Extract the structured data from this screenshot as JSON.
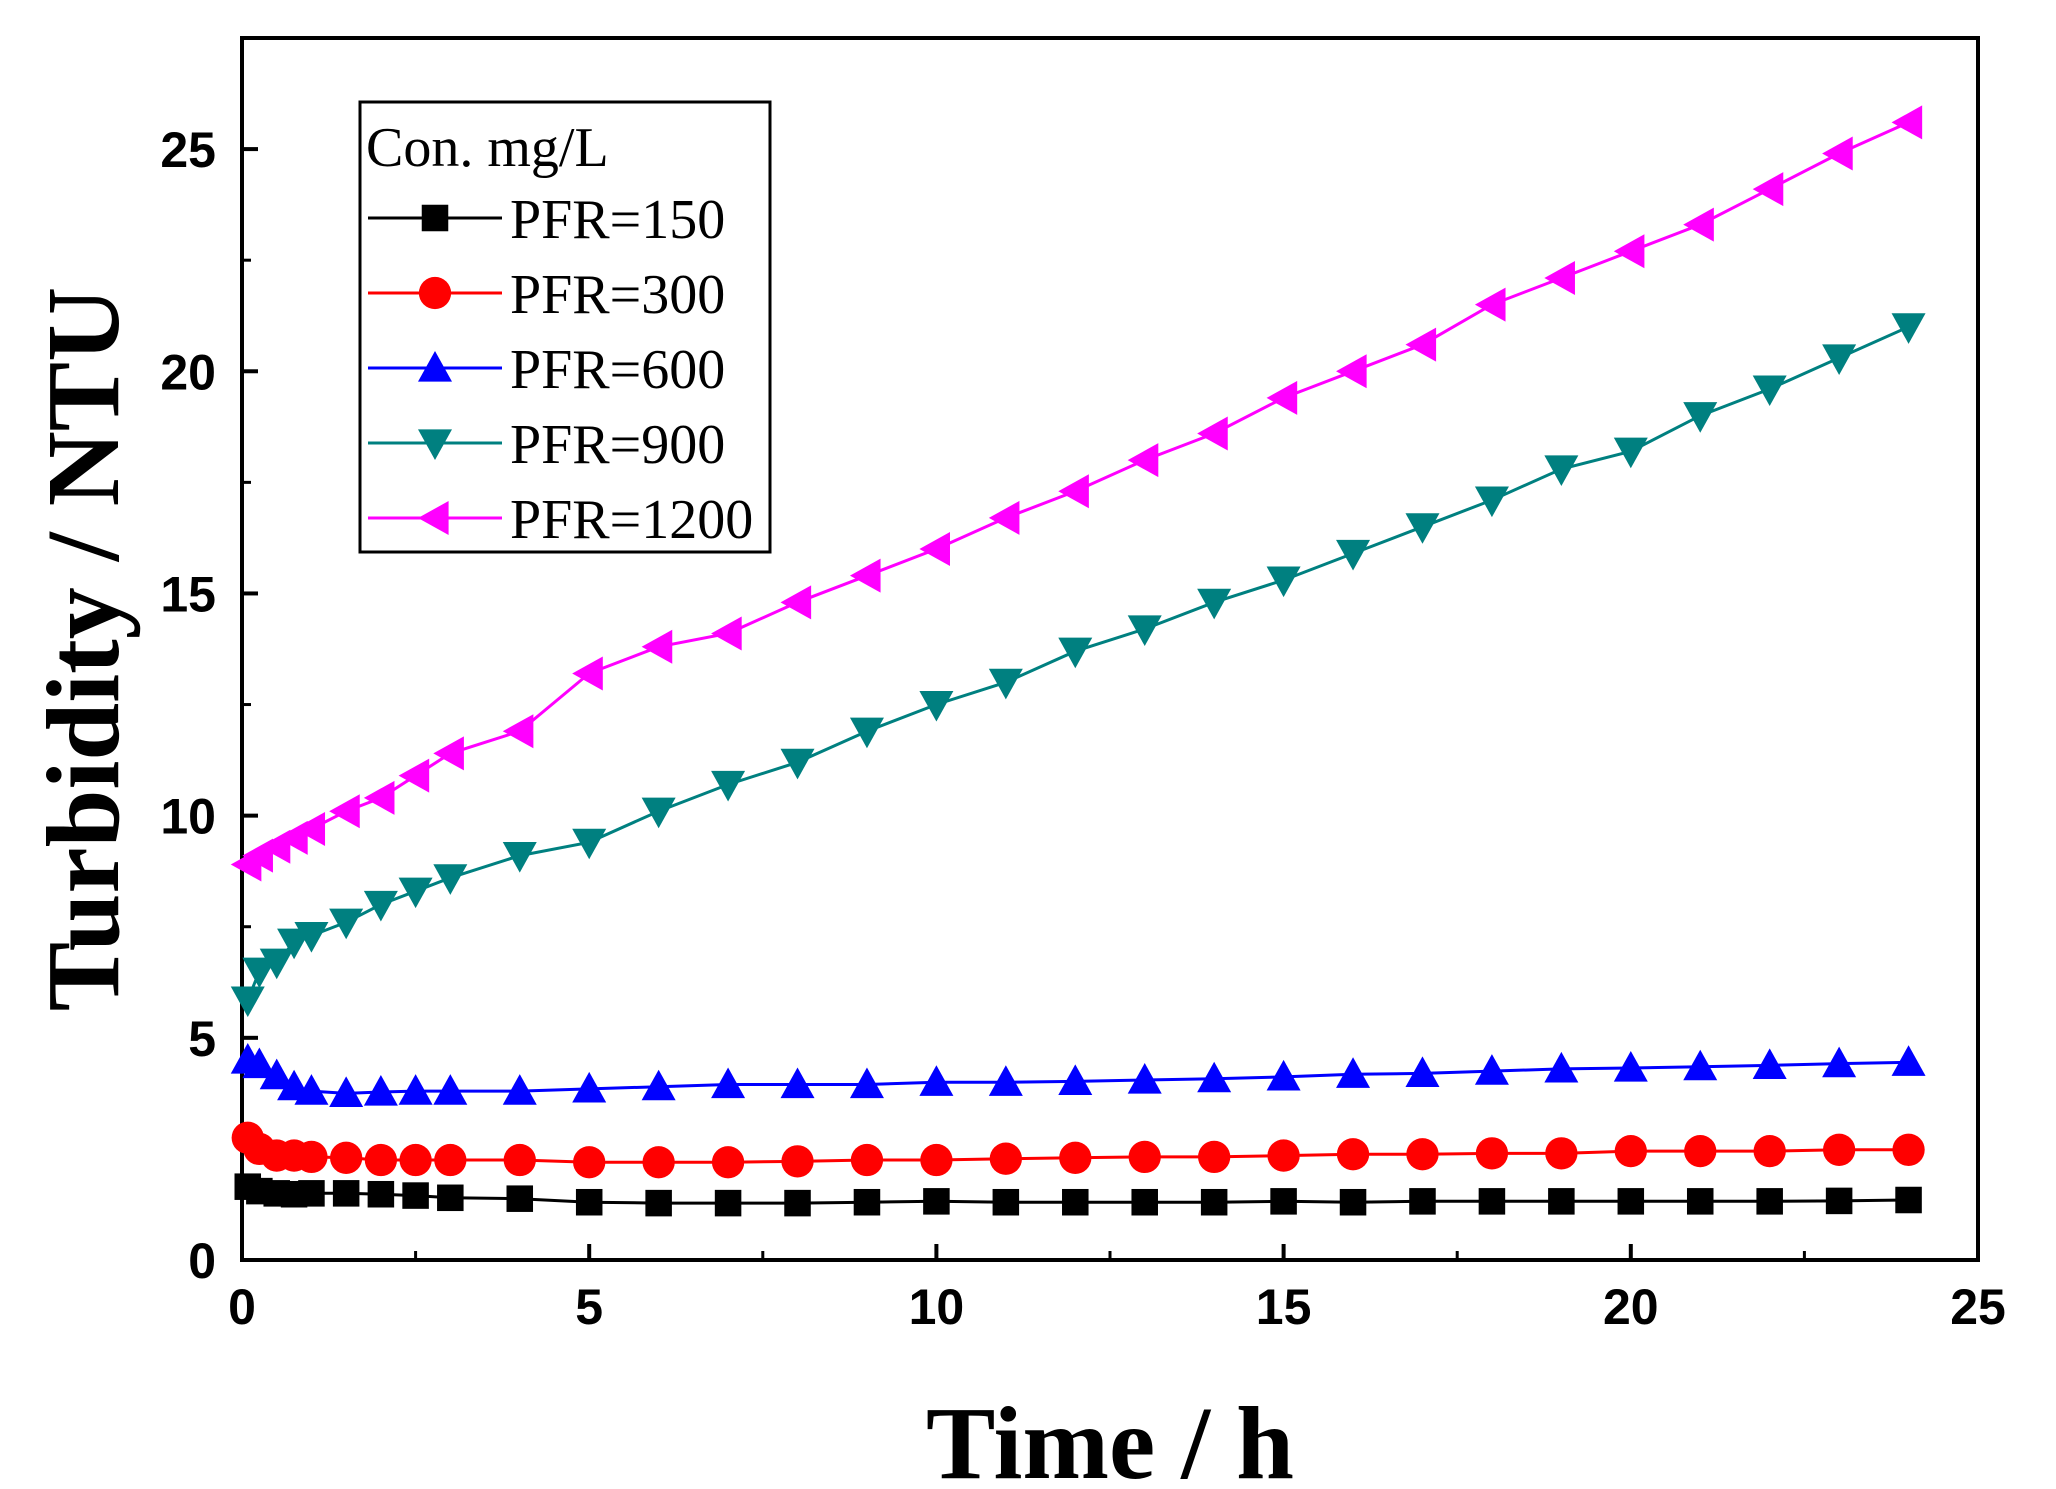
{
  "chart_data": {
    "type": "line",
    "title": "",
    "xlabel": "Time / h",
    "ylabel": "Turbidity / NTU",
    "xlim": [
      0,
      25
    ],
    "ylim": [
      0,
      27.5
    ],
    "xticks": [
      0,
      5,
      10,
      15,
      20,
      25
    ],
    "yticks": [
      0,
      5,
      10,
      15,
      20,
      25
    ],
    "grid": false,
    "legend": {
      "title": "Con. mg/L",
      "position": "top-left"
    },
    "x": [
      0.083,
      0.25,
      0.5,
      0.75,
      1,
      1.5,
      2,
      2.5,
      3,
      4,
      5,
      6,
      7,
      8,
      9,
      10,
      11,
      12,
      13,
      14,
      15,
      16,
      17,
      18,
      19,
      20,
      21,
      22,
      23,
      24
    ],
    "series": [
      {
        "name": "PFR=150",
        "color": "#000000",
        "marker": "square",
        "values": [
          1.65,
          1.55,
          1.5,
          1.48,
          1.5,
          1.5,
          1.48,
          1.45,
          1.4,
          1.38,
          1.3,
          1.28,
          1.28,
          1.28,
          1.3,
          1.32,
          1.3,
          1.3,
          1.3,
          1.3,
          1.32,
          1.3,
          1.32,
          1.32,
          1.32,
          1.32,
          1.32,
          1.32,
          1.33,
          1.35
        ]
      },
      {
        "name": "PFR=300",
        "color": "#ff0000",
        "marker": "circle",
        "values": [
          2.75,
          2.5,
          2.35,
          2.35,
          2.32,
          2.3,
          2.25,
          2.25,
          2.25,
          2.25,
          2.2,
          2.2,
          2.2,
          2.22,
          2.25,
          2.25,
          2.28,
          2.3,
          2.32,
          2.32,
          2.35,
          2.38,
          2.38,
          2.4,
          2.4,
          2.45,
          2.45,
          2.45,
          2.48,
          2.48
        ]
      },
      {
        "name": "PFR=600",
        "color": "#0000ff",
        "marker": "triangle-up",
        "values": [
          4.5,
          4.4,
          4.15,
          3.9,
          3.8,
          3.75,
          3.78,
          3.8,
          3.8,
          3.8,
          3.85,
          3.9,
          3.95,
          3.95,
          3.95,
          4.0,
          4.0,
          4.02,
          4.05,
          4.08,
          4.12,
          4.18,
          4.2,
          4.25,
          4.3,
          4.32,
          4.35,
          4.38,
          4.42,
          4.45
        ]
      },
      {
        "name": "PFR=900",
        "color": "#008080",
        "marker": "triangle-down",
        "values": [
          5.85,
          6.5,
          6.7,
          7.15,
          7.3,
          7.6,
          8.0,
          8.3,
          8.6,
          9.1,
          9.4,
          10.1,
          10.7,
          11.2,
          11.9,
          12.5,
          13.0,
          13.7,
          14.2,
          14.8,
          15.3,
          15.9,
          16.5,
          17.1,
          17.8,
          18.2,
          19.0,
          19.6,
          20.3,
          21.0
        ]
      },
      {
        "name": "PFR=1200",
        "color": "#ff00ff",
        "marker": "triangle-left",
        "values": [
          8.9,
          9.1,
          9.3,
          9.5,
          9.7,
          10.1,
          10.4,
          10.9,
          11.4,
          11.9,
          13.2,
          13.8,
          14.1,
          14.8,
          15.4,
          16.0,
          16.7,
          17.3,
          18.0,
          18.6,
          19.4,
          20.0,
          20.6,
          21.5,
          22.1,
          22.7,
          23.3,
          24.1,
          24.9,
          25.6
        ]
      }
    ]
  }
}
